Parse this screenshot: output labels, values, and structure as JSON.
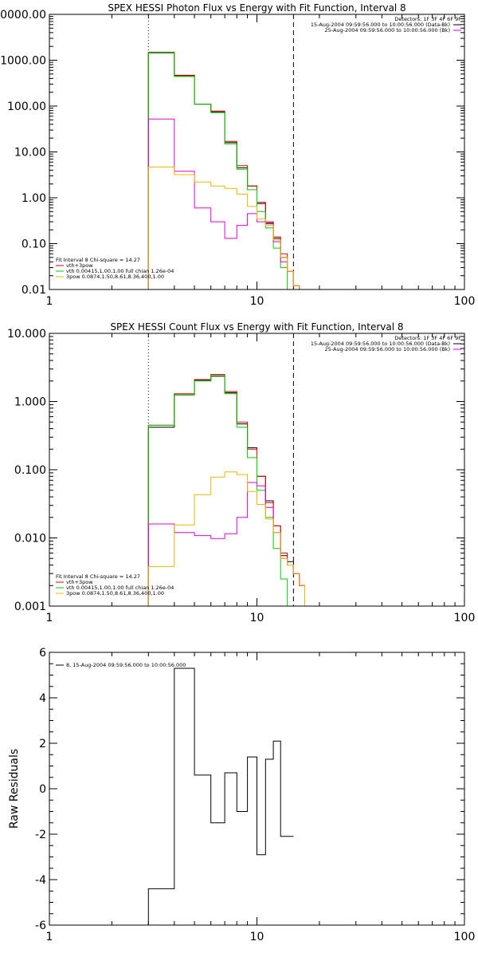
{
  "chart_data": [
    {
      "type": "line",
      "title": "SPEX HESSI Photon Flux vs Energy with Fit Function, Interval 8",
      "scale": "log-log",
      "xlim": [
        1,
        100
      ],
      "ylim": [
        0.01,
        10000
      ],
      "x_ticks": [
        "1",
        "10",
        "100"
      ],
      "y_ticks": [
        "0.01",
        "0.10",
        "1.00",
        "10.00",
        "100.00",
        "1000.00",
        "10000.00"
      ],
      "vlines": [
        {
          "x": 3,
          "style": "dotted"
        },
        {
          "x": 15,
          "style": "dashed"
        }
      ],
      "legend_top": [
        {
          "text": "Detectors: 1F 3F 4F 6F 9F",
          "color": ""
        },
        {
          "text": "15-Aug-2004 09:59:56.000 to 10:00:56.000 (Data-Bk)",
          "color": "#000000"
        },
        {
          "text": "25-Aug-2004 09:59:56.000 to 10:00:56.000 (Bk)",
          "color": "#dd00dd"
        }
      ],
      "legend_bottom": [
        {
          "text": "Fit Interval 8    Chi-square = 14.27",
          "color": ""
        },
        {
          "text": "vth+3pow",
          "color": "#e00000"
        },
        {
          "text": "vth 0.00415,1.00,1.00  full chian 1.26e-04",
          "color": "#00cc00"
        },
        {
          "text": "3pow 0.0874,1.50,8.61,8.36,400,1.00",
          "color": "#e8b800"
        }
      ],
      "edges": [
        3,
        4,
        5,
        6,
        7,
        8,
        9,
        10,
        11,
        12,
        13,
        14,
        15,
        16,
        17,
        18
      ],
      "series": [
        {
          "color": "#000000",
          "values": [
            1450,
            470,
            110,
            75,
            16,
            4.5,
            1.8,
            0.75,
            0.28,
            0.13,
            0.05,
            0.025,
            0.012,
            0.01,
            0.01
          ]
        },
        {
          "color": "#e00000",
          "values": [
            1500,
            460,
            110,
            78,
            17,
            5.0,
            1.8,
            0.8,
            0.3,
            0.14,
            0.06,
            0.025,
            0.012,
            0.01,
            0.01
          ]
        },
        {
          "color": "#00cc00",
          "values": [
            1480,
            440,
            110,
            72,
            15,
            4.2,
            1.5,
            0.5,
            0.22,
            0.08,
            0.03,
            0.01,
            0.01,
            0.01,
            0.01
          ]
        },
        {
          "color": "#dd00dd",
          "values": [
            52,
            3.8,
            0.6,
            0.3,
            0.13,
            0.25,
            0.45,
            0.3,
            0.27,
            0.11,
            0.04,
            0.025,
            0.012,
            0.01,
            0.01
          ]
        },
        {
          "color": "#e8b800",
          "values": [
            4.7,
            3.2,
            2.2,
            1.8,
            1.6,
            1.2,
            0.65,
            0.35,
            0.25,
            0.12,
            0.05,
            0.025,
            0.012,
            0.01,
            0.01
          ]
        }
      ]
    },
    {
      "type": "line",
      "title": "SPEX HESSI Count Flux vs Energy with Fit Function, Interval 8",
      "scale": "log-log",
      "xlim": [
        1,
        100
      ],
      "ylim": [
        0.001,
        10
      ],
      "x_ticks": [
        "1",
        "10",
        "100"
      ],
      "y_ticks": [
        "0.001",
        "0.010",
        "0.100",
        "1.000",
        "10.000"
      ],
      "vlines": [
        {
          "x": 3,
          "style": "dotted"
        },
        {
          "x": 15,
          "style": "dashed"
        }
      ],
      "legend_top": [
        {
          "text": "Detectors: 1F 3F 4F 6F 9F",
          "color": ""
        },
        {
          "text": "15-Aug-2004 09:59:56.000 to 10:00:56.000 (Data-Bk)",
          "color": "#000000"
        },
        {
          "text": "25-Aug-2004 09:59:56.000 to 10:00:56.000 (Bk)",
          "color": "#dd00dd"
        }
      ],
      "legend_bottom": [
        {
          "text": "Fit Interval 8    Chi-square = 14.27",
          "color": ""
        },
        {
          "text": "vth+3pow",
          "color": "#e00000"
        },
        {
          "text": "vth 0.00415,1.00,1.00  full chian 1.26e-04",
          "color": "#00cc00"
        },
        {
          "text": "3pow 0.0874,1.50,8.61,8.36,400,1.00",
          "color": "#e8b800"
        }
      ],
      "edges": [
        3,
        4,
        5,
        6,
        7,
        8,
        9,
        10,
        11,
        12,
        13,
        14,
        15,
        16,
        17,
        18
      ],
      "series": [
        {
          "color": "#000000",
          "values": [
            0.42,
            1.25,
            2.05,
            2.35,
            1.35,
            0.47,
            0.21,
            0.08,
            0.035,
            0.015,
            0.0055,
            0.0045,
            0.003,
            0.002,
            0.001
          ]
        },
        {
          "color": "#e00000",
          "values": [
            0.45,
            1.3,
            2.1,
            2.5,
            1.4,
            0.5,
            0.2,
            0.08,
            0.033,
            0.015,
            0.006,
            0.004,
            0.003,
            0.002,
            0.001
          ]
        },
        {
          "color": "#00cc00",
          "values": [
            0.45,
            1.25,
            2.0,
            2.4,
            1.3,
            0.42,
            0.15,
            0.05,
            0.02,
            0.007,
            0.0025,
            0.001,
            0.001,
            0.001,
            0.001
          ]
        },
        {
          "color": "#dd00dd",
          "values": [
            0.016,
            0.012,
            0.0108,
            0.0098,
            0.0115,
            0.02,
            0.065,
            0.058,
            0.028,
            0.012,
            0.005,
            0.004,
            0.003,
            0.002,
            0.001
          ]
        },
        {
          "color": "#e8b800",
          "values": [
            0.0038,
            0.0155,
            0.043,
            0.078,
            0.093,
            0.085,
            0.048,
            0.031,
            0.019,
            0.012,
            0.005,
            0.004,
            0.003,
            0.002,
            0.001
          ]
        }
      ]
    },
    {
      "type": "line",
      "title": "",
      "scale": "log-linear",
      "xlim": [
        1,
        100
      ],
      "ylim": [
        -6,
        6
      ],
      "x_ticks": [
        "1",
        "10",
        "100"
      ],
      "y_ticks": [
        "-6",
        "-4",
        "-2",
        "0",
        "2",
        "4",
        "6"
      ],
      "ylabel": "Raw Residuals",
      "legend_top": [
        {
          "text": "8, 15-Aug-2004 09:59:56.000 to 10:00:56.000",
          "color": "#000000"
        }
      ],
      "edges": [
        3,
        4,
        5,
        6,
        7,
        8,
        9,
        10,
        11,
        12,
        13,
        14,
        15
      ],
      "series": [
        {
          "color": "#000000",
          "values": [
            -4.4,
            5.3,
            0.6,
            -1.5,
            0.7,
            -1.0,
            1.4,
            -2.9,
            1.3,
            2.1,
            -2.1,
            -2.1
          ]
        }
      ]
    }
  ]
}
